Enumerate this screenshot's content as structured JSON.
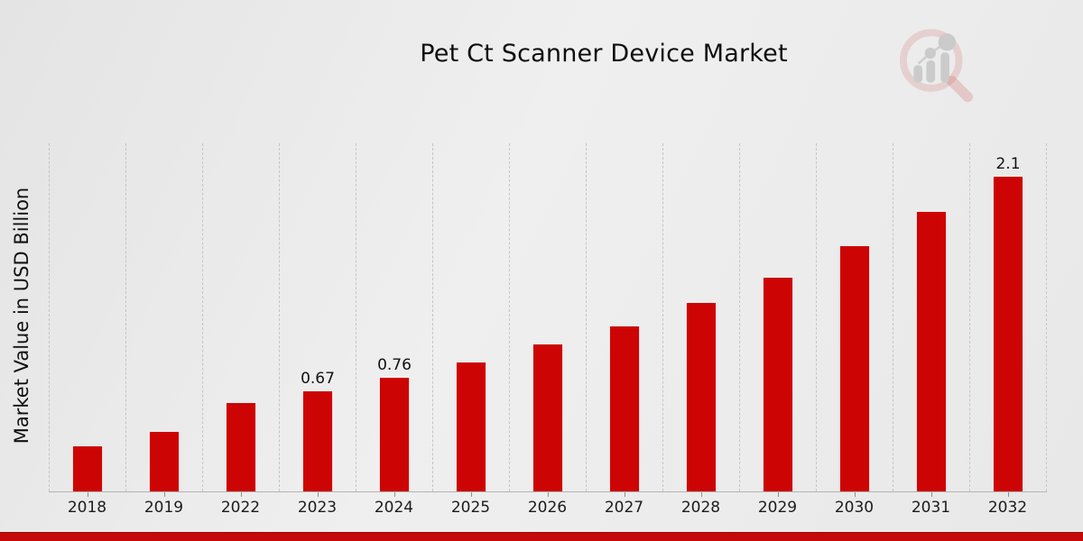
{
  "header": {
    "title": "Pet Ct Scanner Device Market",
    "logo_icon": "magnifier-bar-chart-logo"
  },
  "chart_data": {
    "type": "bar",
    "title": "Pet Ct Scanner Device Market",
    "xlabel": "",
    "ylabel": "Market Value in USD Billion",
    "categories": [
      "2018",
      "2019",
      "2022",
      "2023",
      "2024",
      "2025",
      "2026",
      "2027",
      "2028",
      "2029",
      "2030",
      "2031",
      "2032"
    ],
    "values": [
      0.3,
      0.4,
      0.59,
      0.67,
      0.76,
      0.86,
      0.98,
      1.1,
      1.26,
      1.43,
      1.64,
      1.87,
      2.1
    ],
    "bar_labels": [
      "",
      "",
      "",
      "0.67",
      "0.76",
      "",
      "",
      "",
      "",
      "",
      "",
      "",
      "2.1"
    ],
    "ylim": [
      0,
      2.325
    ],
    "grid": "vertical-dashed",
    "legend": "none",
    "bar_color": "#cc0504",
    "gridline_color": "#c6c6c6",
    "axis_color": "#b3b3b3"
  },
  "footer": {
    "accent_bar_color": "#c40a0a"
  }
}
